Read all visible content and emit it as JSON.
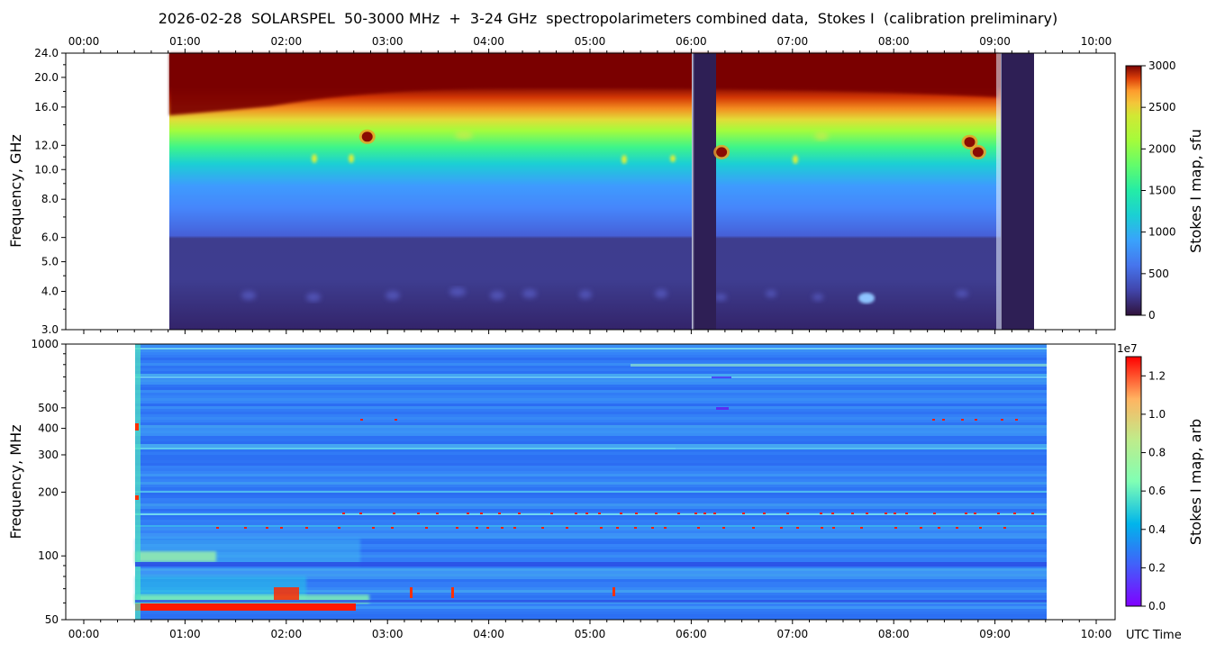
{
  "title": "2026-02-28  SOLARSPEL  50-3000 MHz  +  3-24 GHz  spectropolarimeters combined data,  Stokes I  (calibration preliminary)",
  "xlabel": "UTC Time",
  "chart_data": [
    {
      "type": "heatmap",
      "panel": "top",
      "ylabel": "Frequency, GHz",
      "yscale": "log",
      "ylim": [
        3.0,
        24.0
      ],
      "yticks": [
        "3.0",
        "4.0",
        "5.0",
        "6.0",
        "8.0",
        "10.0",
        "12.0",
        "16.0",
        "20.0",
        "24.0"
      ],
      "ytick_values": [
        3,
        4,
        5,
        6,
        8,
        10,
        12,
        16,
        20,
        24
      ],
      "xlim": [
        "00:00",
        "10:00"
      ],
      "xticks_top": [
        "00:00",
        "01:00",
        "02:00",
        "03:00",
        "04:00",
        "05:00",
        "06:00",
        "07:00",
        "08:00",
        "09:00",
        "10:00"
      ],
      "data_time_range": [
        "00:50",
        "09:25"
      ],
      "gaps": [
        [
          "05:59",
          "06:14"
        ],
        [
          "09:04",
          "09:25"
        ]
      ],
      "colorbar": {
        "label": "Stokes I map, sfu",
        "min": 0,
        "max": 3000,
        "ticks": [
          "0",
          "500",
          "1000",
          "1500",
          "2000",
          "2500",
          "3000"
        ],
        "colormap": "turbo"
      },
      "bursts": [
        {
          "time": "02:48",
          "freq_ghz": 12.8
        },
        {
          "time": "06:18",
          "freq_ghz": 11.4
        },
        {
          "time": "08:45",
          "freq_ghz": 12.3
        },
        {
          "time": "08:50",
          "freq_ghz": 11.4
        }
      ]
    },
    {
      "type": "heatmap",
      "panel": "bottom",
      "ylabel": "Frequency, MHz",
      "yscale": "log",
      "ylim": [
        50,
        1000
      ],
      "yticks": [
        "50",
        "100",
        "200",
        "300",
        "400",
        "500",
        "1000"
      ],
      "ytick_values": [
        50,
        100,
        200,
        300,
        400,
        500,
        1000
      ],
      "xlim": [
        "00:00",
        "10:00"
      ],
      "xticks": [
        "00:00",
        "01:00",
        "02:00",
        "03:00",
        "04:00",
        "05:00",
        "06:00",
        "07:00",
        "08:00",
        "09:00",
        "10:00"
      ],
      "data_time_range": [
        "00:30",
        "09:30"
      ],
      "colorbar": {
        "label": "Stokes I map, arb",
        "min": 0.0,
        "max": 1.3,
        "multiplier": "1e7",
        "ticks": [
          "0.0",
          "0.2",
          "0.4",
          "0.6",
          "0.8",
          "1.0",
          "1.2"
        ],
        "colormap": "rainbow"
      }
    }
  ]
}
